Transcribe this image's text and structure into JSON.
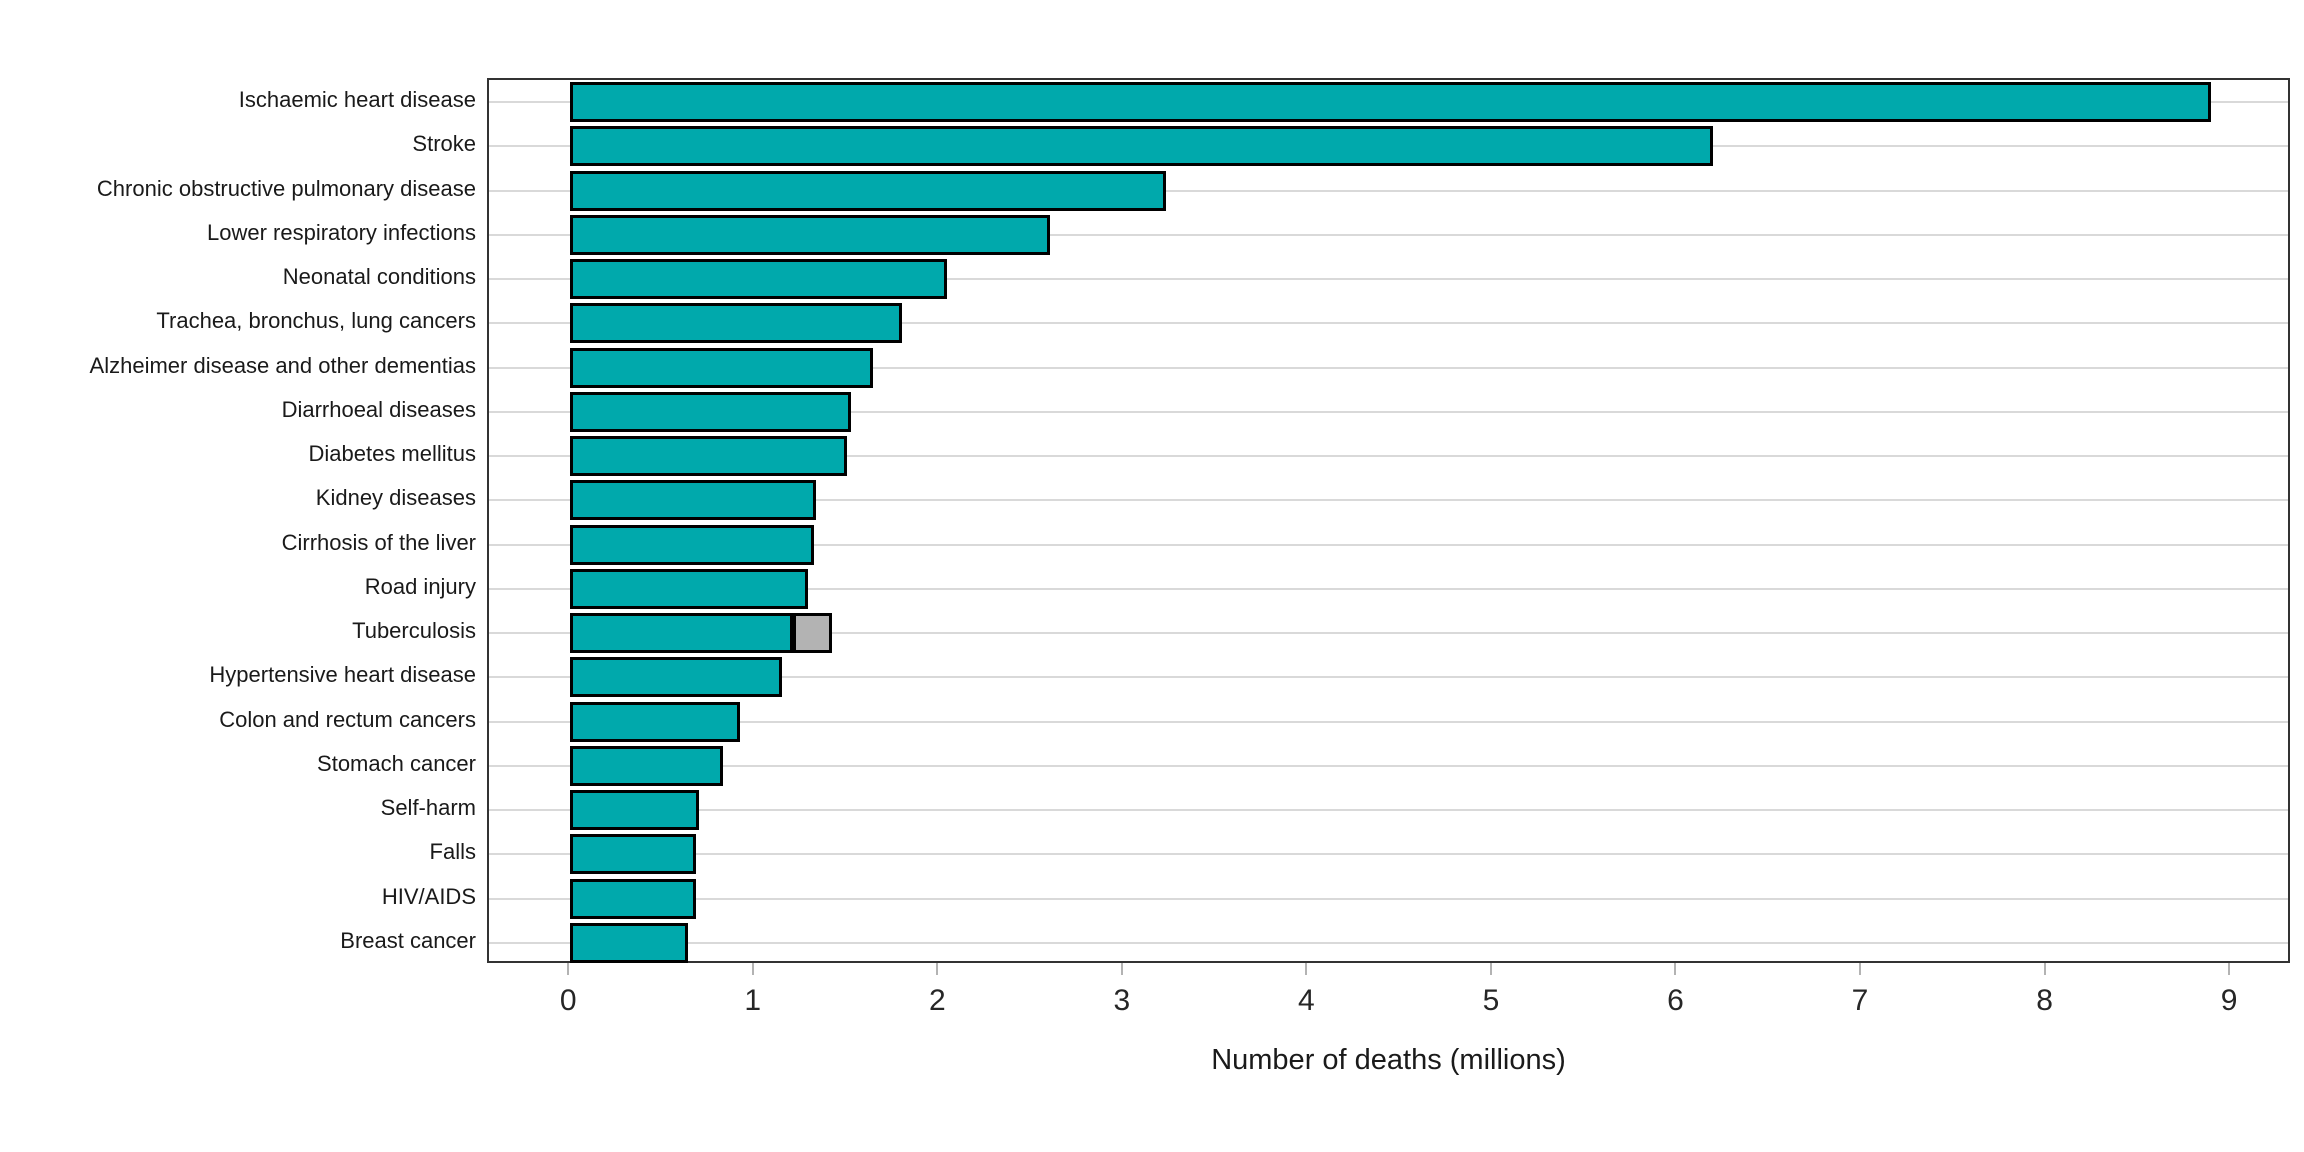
{
  "chart_data": {
    "type": "bar",
    "orientation": "horizontal",
    "title": "",
    "xlabel": "Number of deaths (millions)",
    "ylabel": "",
    "xlim": [
      -0.44,
      9.33
    ],
    "x_ticks": [
      0,
      1,
      2,
      3,
      4,
      5,
      6,
      7,
      8,
      9
    ],
    "grid": "horizontal-major-only",
    "legend": "none",
    "bar_color": "#00a9ac",
    "secondary_segment_color": "#b3b3b3",
    "bar_outline_color": "#000000",
    "bars": [
      {
        "label": "Ischaemic heart disease",
        "value": 8.89
      },
      {
        "label": "Stroke",
        "value": 6.19
      },
      {
        "label": "Chronic obstructive pulmonary disease",
        "value": 3.23
      },
      {
        "label": "Lower respiratory infections",
        "value": 2.6
      },
      {
        "label": "Neonatal conditions",
        "value": 2.04
      },
      {
        "label": "Trachea, bronchus, lung cancers",
        "value": 1.8
      },
      {
        "label": "Alzheimer disease and other dementias",
        "value": 1.64
      },
      {
        "label": "Diarrhoeal diseases",
        "value": 1.52
      },
      {
        "label": "Diabetes mellitus",
        "value": 1.5
      },
      {
        "label": "Kidney diseases",
        "value": 1.33
      },
      {
        "label": "Cirrhosis of the liver",
        "value": 1.32
      },
      {
        "label": "Road injury",
        "value": 1.29
      },
      {
        "label": "Tuberculosis",
        "value": 1.21,
        "secondary_value": 0.21
      },
      {
        "label": "Hypertensive heart disease",
        "value": 1.15
      },
      {
        "label": "Colon and rectum cancers",
        "value": 0.92
      },
      {
        "label": "Stomach cancer",
        "value": 0.83
      },
      {
        "label": "Self-harm",
        "value": 0.7
      },
      {
        "label": "Falls",
        "value": 0.68
      },
      {
        "label": "HIV/AIDS",
        "value": 0.68
      },
      {
        "label": "Breast cancer",
        "value": 0.64
      }
    ]
  }
}
